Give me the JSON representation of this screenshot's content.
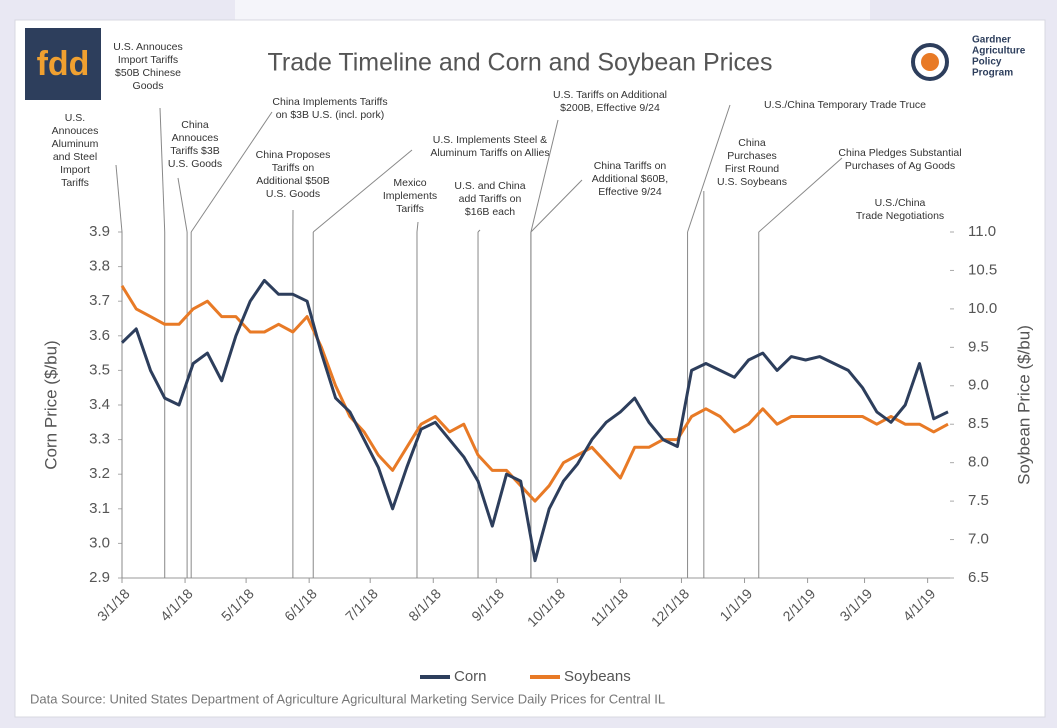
{
  "logo": "fdd",
  "brand": [
    "Gardner",
    "Agriculture",
    "Policy",
    "Program"
  ],
  "chart_data": {
    "type": "line",
    "title": "Trade Timeline and Corn and Soybean Prices",
    "ylabel": "Corn Price ($/bu)",
    "y2label": "Soybean Price ($/bu)",
    "source": "Data Source: United States Department of Agriculture Agricultural Marketing Service Daily Prices for Central IL",
    "x": [
      "2018-03-01",
      "2018-03-08",
      "2018-03-15",
      "2018-03-22",
      "2018-03-29",
      "2018-04-05",
      "2018-04-12",
      "2018-04-19",
      "2018-04-26",
      "2018-05-03",
      "2018-05-10",
      "2018-05-17",
      "2018-05-24",
      "2018-05-31",
      "2018-06-07",
      "2018-06-14",
      "2018-06-21",
      "2018-06-28",
      "2018-07-05",
      "2018-07-12",
      "2018-07-19",
      "2018-07-26",
      "2018-08-02",
      "2018-08-09",
      "2018-08-16",
      "2018-08-23",
      "2018-08-30",
      "2018-09-06",
      "2018-09-13",
      "2018-09-20",
      "2018-09-27",
      "2018-10-04",
      "2018-10-11",
      "2018-10-18",
      "2018-10-25",
      "2018-11-01",
      "2018-11-08",
      "2018-11-15",
      "2018-11-22",
      "2018-11-29",
      "2018-12-06",
      "2018-12-13",
      "2018-12-20",
      "2018-12-27",
      "2019-01-03",
      "2019-01-10",
      "2019-01-17",
      "2019-01-24",
      "2019-01-31",
      "2019-02-07",
      "2019-02-14",
      "2019-02-21",
      "2019-02-28",
      "2019-03-07",
      "2019-03-14",
      "2019-03-21",
      "2019-03-28",
      "2019-04-04",
      "2019-04-11"
    ],
    "series": [
      {
        "name": "Corn",
        "color": "#2d3e5c",
        "axis": "y",
        "values": [
          3.58,
          3.62,
          3.5,
          3.42,
          3.4,
          3.52,
          3.55,
          3.47,
          3.6,
          3.7,
          3.76,
          3.72,
          3.72,
          3.7,
          3.55,
          3.42,
          3.38,
          3.3,
          3.22,
          3.1,
          3.22,
          3.33,
          3.35,
          3.3,
          3.25,
          3.18,
          3.05,
          3.2,
          3.18,
          2.95,
          3.1,
          3.18,
          3.23,
          3.3,
          3.35,
          3.38,
          3.42,
          3.35,
          3.3,
          3.28,
          3.5,
          3.52,
          3.5,
          3.48,
          3.53,
          3.55,
          3.5,
          3.54,
          3.53,
          3.54,
          3.52,
          3.5,
          3.45,
          3.38,
          3.35,
          3.4,
          3.52,
          3.36,
          3.38
        ]
      },
      {
        "name": "Soybeans",
        "color": "#e87a26",
        "axis": "y2",
        "values": [
          10.3,
          10.0,
          9.9,
          9.8,
          9.8,
          10.0,
          10.1,
          9.9,
          9.9,
          9.7,
          9.7,
          9.8,
          9.7,
          9.9,
          9.5,
          9.0,
          8.6,
          8.4,
          8.1,
          7.9,
          8.2,
          8.5,
          8.6,
          8.4,
          8.5,
          8.1,
          7.9,
          7.9,
          7.7,
          7.5,
          7.7,
          8.0,
          8.1,
          8.2,
          8.0,
          7.8,
          8.2,
          8.2,
          8.3,
          8.3,
          8.6,
          8.7,
          8.6,
          8.4,
          8.5,
          8.7,
          8.5,
          8.6,
          8.6,
          8.6,
          8.6,
          8.6,
          8.6,
          8.5,
          8.6,
          8.5,
          8.5,
          8.4,
          8.5
        ]
      }
    ],
    "xlim": [
      "2018-03-01",
      "2019-04-12"
    ],
    "xticks": [
      {
        "value": "2018-03-01",
        "label": "3/1/18"
      },
      {
        "value": "2018-04-01",
        "label": "4/1/18"
      },
      {
        "value": "2018-05-01",
        "label": "5/1/18"
      },
      {
        "value": "2018-06-01",
        "label": "6/1/18"
      },
      {
        "value": "2018-07-01",
        "label": "7/1/18"
      },
      {
        "value": "2018-08-01",
        "label": "8/1/18"
      },
      {
        "value": "2018-09-01",
        "label": "9/1/18"
      },
      {
        "value": "2018-10-01",
        "label": "10/1/18"
      },
      {
        "value": "2018-11-01",
        "label": "11/1/18"
      },
      {
        "value": "2018-12-01",
        "label": "12/1/18"
      },
      {
        "value": "2019-01-01",
        "label": "1/1/19"
      },
      {
        "value": "2019-02-01",
        "label": "2/1/19"
      },
      {
        "value": "2019-03-01",
        "label": "3/1/19"
      },
      {
        "value": "2019-04-01",
        "label": "4/1/19"
      }
    ],
    "ylim": [
      2.9,
      3.9
    ],
    "yticks": [
      2.9,
      {
        "value": 3,
        "label": "3.0"
      },
      3.1,
      3.2,
      3.3,
      3.4,
      3.5,
      3.6,
      3.7,
      3.8,
      3.9
    ],
    "y2lim": [
      6.5,
      11
    ],
    "y2ticks": [
      6.5,
      {
        "value": 7,
        "label": "7.0"
      },
      7.5,
      {
        "value": 8,
        "label": "8.0"
      },
      8.5,
      {
        "value": 9,
        "label": "9.0"
      },
      9.5,
      {
        "value": 10,
        "label": "10.0"
      },
      10.5,
      {
        "value": 11,
        "label": "11.0"
      }
    ],
    "legend": "bottom",
    "annotations": [
      {
        "lines": [
          "U.S.",
          "Annouces",
          "Aluminum",
          "and Steel",
          "Import",
          "Tariffs"
        ],
        "x": "2018-03-01"
      },
      {
        "lines": [
          "U.S. Annouces",
          "Import Tariffs",
          "$50B Chinese",
          "Goods"
        ],
        "x": "2018-03-22"
      },
      {
        "lines": [
          "China",
          "Annouces",
          "Tariffs $3B",
          "U.S. Goods"
        ],
        "x": "2018-04-02"
      },
      {
        "lines": [
          "China Implements Tariffs",
          "on $3B U.S. (incl. pork)"
        ],
        "x": "2018-04-04"
      },
      {
        "lines": [
          "China Proposes",
          "Tariffs on",
          "Additional $50B",
          "U.S. Goods"
        ],
        "x": "2018-05-24"
      },
      {
        "lines": [
          "U.S. Implements Steel &",
          "Aluminum Tariffs on Allies"
        ],
        "x": "2018-06-03"
      },
      {
        "lines": [
          "Mexico",
          "Implements",
          "Tariffs"
        ],
        "x": "2018-07-24"
      },
      {
        "lines": [
          "U.S. and China",
          "add Tariffs on",
          "$16B each"
        ],
        "x": "2018-08-23"
      },
      {
        "lines": [
          "U.S. Tariffs on Additional",
          "$200B, Effective 9/24"
        ],
        "x": "2018-09-18"
      },
      {
        "lines": [
          "China Tariffs on",
          "Additional $60B,",
          "Effective 9/24"
        ],
        "x": "2018-09-18"
      },
      {
        "lines": [
          "U.S./China Temporary Trade Truce"
        ],
        "x": "2018-12-04"
      },
      {
        "lines": [
          "China",
          "Purchases",
          "First Round",
          "U.S. Soybeans"
        ],
        "x": "2018-12-12"
      },
      {
        "lines": [
          "China Pledges Substantial",
          "Purchases of Ag Goods"
        ],
        "x": "2019-01-08"
      },
      {
        "lines": [
          "U.S./China",
          "Trade Negotiations"
        ]
      }
    ]
  }
}
